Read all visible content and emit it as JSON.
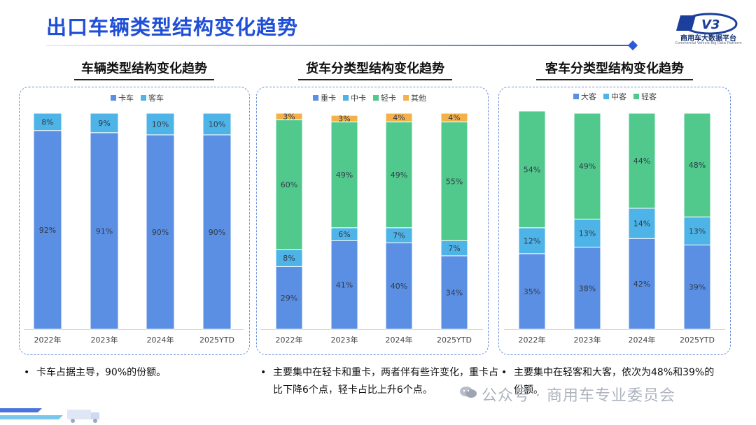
{
  "header": {
    "title": "出口车辆类型结构变化趋势",
    "logo_text": "商用车大数据平台",
    "logo_sub": "Commercial Vehicle Big Data Platform",
    "logo_mark": "V3"
  },
  "colors": {
    "title": "#1f4fd6",
    "heavy_blue": "#5b8fe3",
    "light_blue": "#4eb3e6",
    "green": "#52c98c",
    "orange": "#f4b14a"
  },
  "footer": {
    "watermark": "公众号 · 商用车专业委员会"
  },
  "chart_data": [
    {
      "type": "bar",
      "stacked": true,
      "title": "车辆类型结构变化趋势",
      "categories": [
        "2022年",
        "2023年",
        "2024年",
        "2025YTD"
      ],
      "series": [
        {
          "name": "卡车",
          "color": "#5b8fe3",
          "values": [
            92,
            91,
            90,
            90
          ],
          "labels": [
            "92%",
            "91%",
            "90%",
            "90%"
          ]
        },
        {
          "name": "客车",
          "color": "#4eb3e6",
          "values": [
            8,
            9,
            10,
            10
          ],
          "labels": [
            "8%",
            "9%",
            "10%",
            "10%"
          ]
        }
      ],
      "ylim": [
        0,
        100
      ],
      "legend": "top",
      "note": "卡车占据主导，90%的份额。"
    },
    {
      "type": "bar",
      "stacked": true,
      "title": "货车分类型结构变化趋势",
      "categories": [
        "2022年",
        "2023年",
        "2024年",
        "2025YTD"
      ],
      "series": [
        {
          "name": "重卡",
          "color": "#5b8fe3",
          "values": [
            29,
            41,
            40,
            34
          ],
          "labels": [
            "29%",
            "41%",
            "40%",
            "34%"
          ]
        },
        {
          "name": "中卡",
          "color": "#4eb3e6",
          "values": [
            8,
            6,
            7,
            7
          ],
          "labels": [
            "8%",
            "6%",
            "7%",
            "7%"
          ]
        },
        {
          "name": "轻卡",
          "color": "#52c98c",
          "values": [
            60,
            49,
            49,
            55
          ],
          "labels": [
            "60%",
            "49%",
            "49%",
            "55%"
          ]
        },
        {
          "name": "其他",
          "color": "#f4b14a",
          "values": [
            3,
            3,
            4,
            4
          ],
          "labels": [
            "3%",
            "3%",
            "4%",
            "4%"
          ]
        }
      ],
      "ylim": [
        0,
        100
      ],
      "legend": "top",
      "note": "主要集中在轻卡和重卡，两者伴有些许变化，重卡占比下降6个点，轻卡占比上升6个点。"
    },
    {
      "type": "bar",
      "stacked": true,
      "title": "客车分类型结构变化趋势",
      "categories": [
        "2022年",
        "2023年",
        "2024年",
        "2025YTD"
      ],
      "series": [
        {
          "name": "大客",
          "color": "#5b8fe3",
          "values": [
            35,
            38,
            42,
            39
          ],
          "labels": [
            "35%",
            "38%",
            "42%",
            "39%"
          ]
        },
        {
          "name": "中客",
          "color": "#4eb3e6",
          "values": [
            12,
            13,
            14,
            13
          ],
          "labels": [
            "12%",
            "13%",
            "14%",
            "13%"
          ]
        },
        {
          "name": "轻客",
          "color": "#52c98c",
          "values": [
            54,
            49,
            44,
            48
          ],
          "labels": [
            "54%",
            "49%",
            "44%",
            "48%"
          ]
        }
      ],
      "ylim": [
        0,
        100
      ],
      "legend": "top",
      "note": "主要集中在轻客和大客，依次为48%和39%的份额。"
    }
  ]
}
